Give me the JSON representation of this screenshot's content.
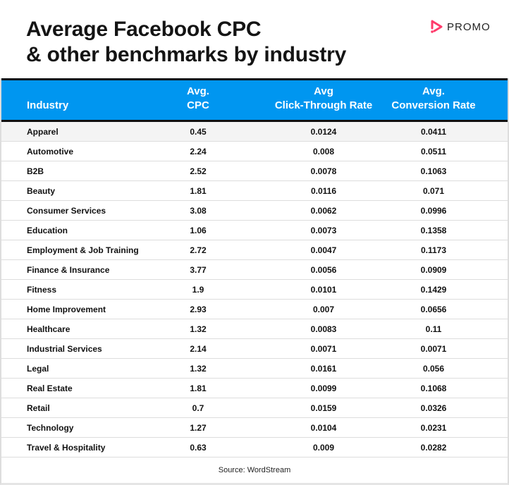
{
  "title": {
    "line1": "Average Facebook CPC",
    "line2": "& other benchmarks by industry"
  },
  "logo": {
    "text": "PROMO",
    "color": "#ff3b6b"
  },
  "header": {
    "industry": "Industry",
    "cpc_1": "Avg.",
    "cpc_2": "CPC",
    "ctr_1": "Avg",
    "ctr_2": "Click-Through Rate",
    "conv_1": "Avg.",
    "conv_2": "Conversion Rate"
  },
  "accent": "#0096f0",
  "rows": [
    [
      "Apparel",
      "0.45",
      "0.0124",
      "0.0411"
    ],
    [
      "Automotive",
      "2.24",
      "0.008",
      "0.0511"
    ],
    [
      "B2B",
      "2.52",
      "0.0078",
      "0.1063"
    ],
    [
      "Beauty",
      "1.81",
      "0.0116",
      "0.071"
    ],
    [
      "Consumer Services",
      "3.08",
      "0.0062",
      "0.0996"
    ],
    [
      "Education",
      "1.06",
      "0.0073",
      "0.1358"
    ],
    [
      "Employment & Job Training",
      "2.72",
      "0.0047",
      "0.1173"
    ],
    [
      "Finance & Insurance",
      "3.77",
      "0.0056",
      "0.0909"
    ],
    [
      "Fitness",
      "1.9",
      "0.0101",
      "0.1429"
    ],
    [
      "Home Improvement",
      "2.93",
      "0.007",
      "0.0656"
    ],
    [
      "Healthcare",
      "1.32",
      "0.0083",
      "0.11"
    ],
    [
      "Industrial Services",
      "2.14",
      "0.0071",
      "0.0071"
    ],
    [
      "Legal",
      "1.32",
      "0.0161",
      "0.056"
    ],
    [
      "Real Estate",
      "1.81",
      "0.0099",
      "0.1068"
    ],
    [
      "Retail",
      "0.7",
      "0.0159",
      "0.0326"
    ],
    [
      "Technology",
      "1.27",
      "0.0104",
      "0.0231"
    ],
    [
      "Travel & Hospitality",
      "0.63",
      "0.009",
      "0.0282"
    ]
  ],
  "source": "Source: WordStream"
}
